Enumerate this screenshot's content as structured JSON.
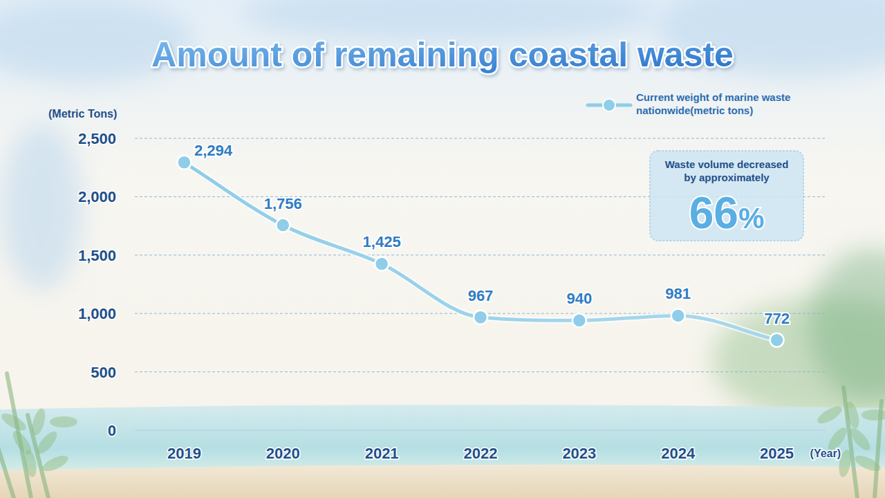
{
  "chart_data": {
    "type": "line",
    "title": "Amount of remaining coastal waste",
    "categories": [
      "2019",
      "2020",
      "2021",
      "2022",
      "2023",
      "2024",
      "2025"
    ],
    "x_label": "(Year)",
    "y_label": "(Metric Tons)",
    "series": [
      {
        "name": "Current weight of marine waste nationwide(metric tons)",
        "color": "#8fcde8",
        "values": [
          2294,
          1756,
          1425,
          967,
          940,
          981,
          772
        ],
        "value_labels": [
          "2,294",
          "1,756",
          "1,425",
          "967",
          "940",
          "981",
          "772"
        ],
        "marker": "circle",
        "line_style": "smooth"
      }
    ],
    "ylim": [
      0,
      2500
    ],
    "yticks": [
      0,
      500,
      {
        "value": 1000,
        "label": "1,000"
      },
      {
        "value": 1500,
        "label": "1,500"
      },
      {
        "value": 2000,
        "label": "2,000"
      },
      {
        "value": 2500,
        "label": "2,500"
      }
    ],
    "grid": true,
    "legend": "top-right",
    "data_labels": true,
    "annotation": {
      "text": "Waste volume decreased by approximately",
      "label": "66%"
    }
  }
}
